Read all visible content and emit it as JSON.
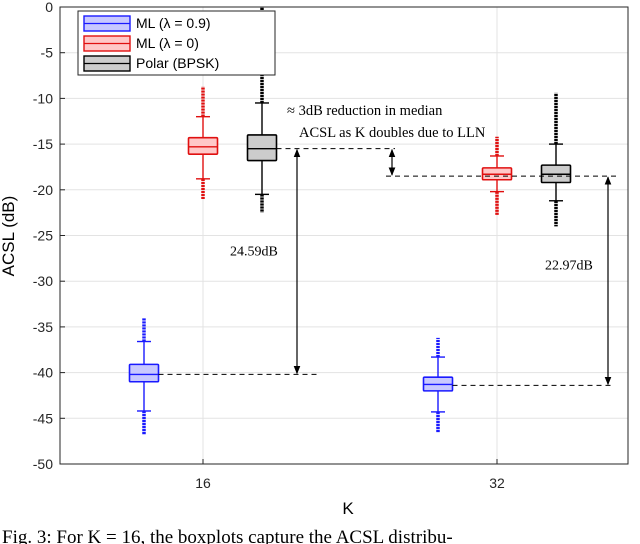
{
  "chart_data": {
    "type": "boxplot",
    "title": "",
    "xlabel": "K",
    "ylabel": "ACSL (dB)",
    "ylim": [
      -50,
      0
    ],
    "yticks": [
      0,
      -5,
      -10,
      -15,
      -20,
      -25,
      -30,
      -35,
      -40,
      -45,
      -50
    ],
    "ytick_labels": [
      "0",
      "-5",
      "-10",
      "-15",
      "-20",
      "-25",
      "-30",
      "-35",
      "-40",
      "-45",
      "-50"
    ],
    "categories": [
      "16",
      "32"
    ],
    "grid": true,
    "legend_position": "top-left",
    "series": [
      {
        "name": "ML (λ = 0.9)",
        "edge_color": "#1a1aff",
        "fill_color": "#c8c8ff",
        "boxes": [
          {
            "category": "16",
            "median": -40.2,
            "q1": -41.0,
            "q3": -39.1,
            "whisker_low": -44.2,
            "whisker_high": -36.6,
            "outlier_low": -46.8,
            "outlier_high": -34.0
          },
          {
            "category": "32",
            "median": -41.3,
            "q1": -42.0,
            "q3": -40.5,
            "whisker_low": -44.3,
            "whisker_high": -38.3,
            "outlier_low": -46.6,
            "outlier_high": -36.2
          }
        ]
      },
      {
        "name": "ML (λ = 0)",
        "edge_color": "#e01010",
        "fill_color": "#ffc8c8",
        "boxes": [
          {
            "category": "16",
            "median": -15.3,
            "q1": -16.1,
            "q3": -14.3,
            "whisker_low": -18.8,
            "whisker_high": -12.0,
            "outlier_low": -21.0,
            "outlier_high": -8.7
          },
          {
            "category": "32",
            "median": -18.3,
            "q1": -18.9,
            "q3": -17.6,
            "whisker_low": -20.2,
            "whisker_high": -16.3,
            "outlier_low": -22.8,
            "outlier_high": -14.2
          }
        ]
      },
      {
        "name": "Polar (BPSK)",
        "edge_color": "#000000",
        "fill_color": "#cccccc",
        "boxes": [
          {
            "category": "16",
            "median": -15.5,
            "q1": -16.8,
            "q3": -14.0,
            "whisker_low": -20.5,
            "whisker_high": -10.5,
            "outlier_low": -22.5,
            "outlier_high": 0.0
          },
          {
            "category": "32",
            "median": -18.3,
            "q1": -19.2,
            "q3": -17.3,
            "whisker_low": -21.2,
            "whisker_high": -15.0,
            "outlier_low": -24.0,
            "outlier_high": -9.4
          }
        ]
      }
    ],
    "annotations": {
      "reduction_line1": "≈ 3dB reduction in median",
      "reduction_line2": "ACSL as K doubles due to LLN",
      "gap16": "24.59dB",
      "gap32": "22.97dB",
      "arrow16_top": -15.5,
      "arrow16_bottom": -40.2,
      "arrow32_top": -18.5,
      "arrow32_bottom": -41.4,
      "small_arrow_top": -15.5,
      "small_arrow_bottom": -18.5
    }
  },
  "caption": "Fig. 3: For K = 16, the boxplots capture the ACSL distribu-"
}
